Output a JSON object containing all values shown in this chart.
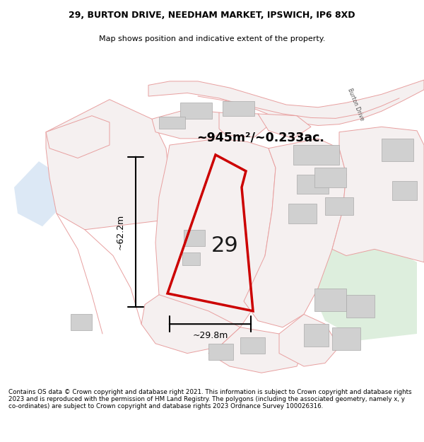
{
  "title": "29, BURTON DRIVE, NEEDHAM MARKET, IPSWICH, IP6 8XD",
  "subtitle": "Map shows position and indicative extent of the property.",
  "area_text": "~945m²/~0.233ac.",
  "height_label": "~62.2m",
  "width_label": "~29.8m",
  "number_label": "29",
  "footer": "Contains OS data © Crown copyright and database right 2021. This information is subject to Crown copyright and database rights 2023 and is reproduced with the permission of HM Land Registry. The polygons (including the associated geometry, namely x, y co-ordinates) are subject to Crown copyright and database rights 2023 Ordnance Survey 100026316.",
  "map_bg": "#f8f6f6",
  "highlight_color": "#cc0000",
  "road_color": "#e8a0a0",
  "road_fill": "#f5f0f0",
  "building_color": "#d0d0d0",
  "building_edge": "#aaaaaa",
  "water_color": "#dce8f5",
  "green_color": "#ddeedd",
  "burton_drive_text": "Burton Drive"
}
